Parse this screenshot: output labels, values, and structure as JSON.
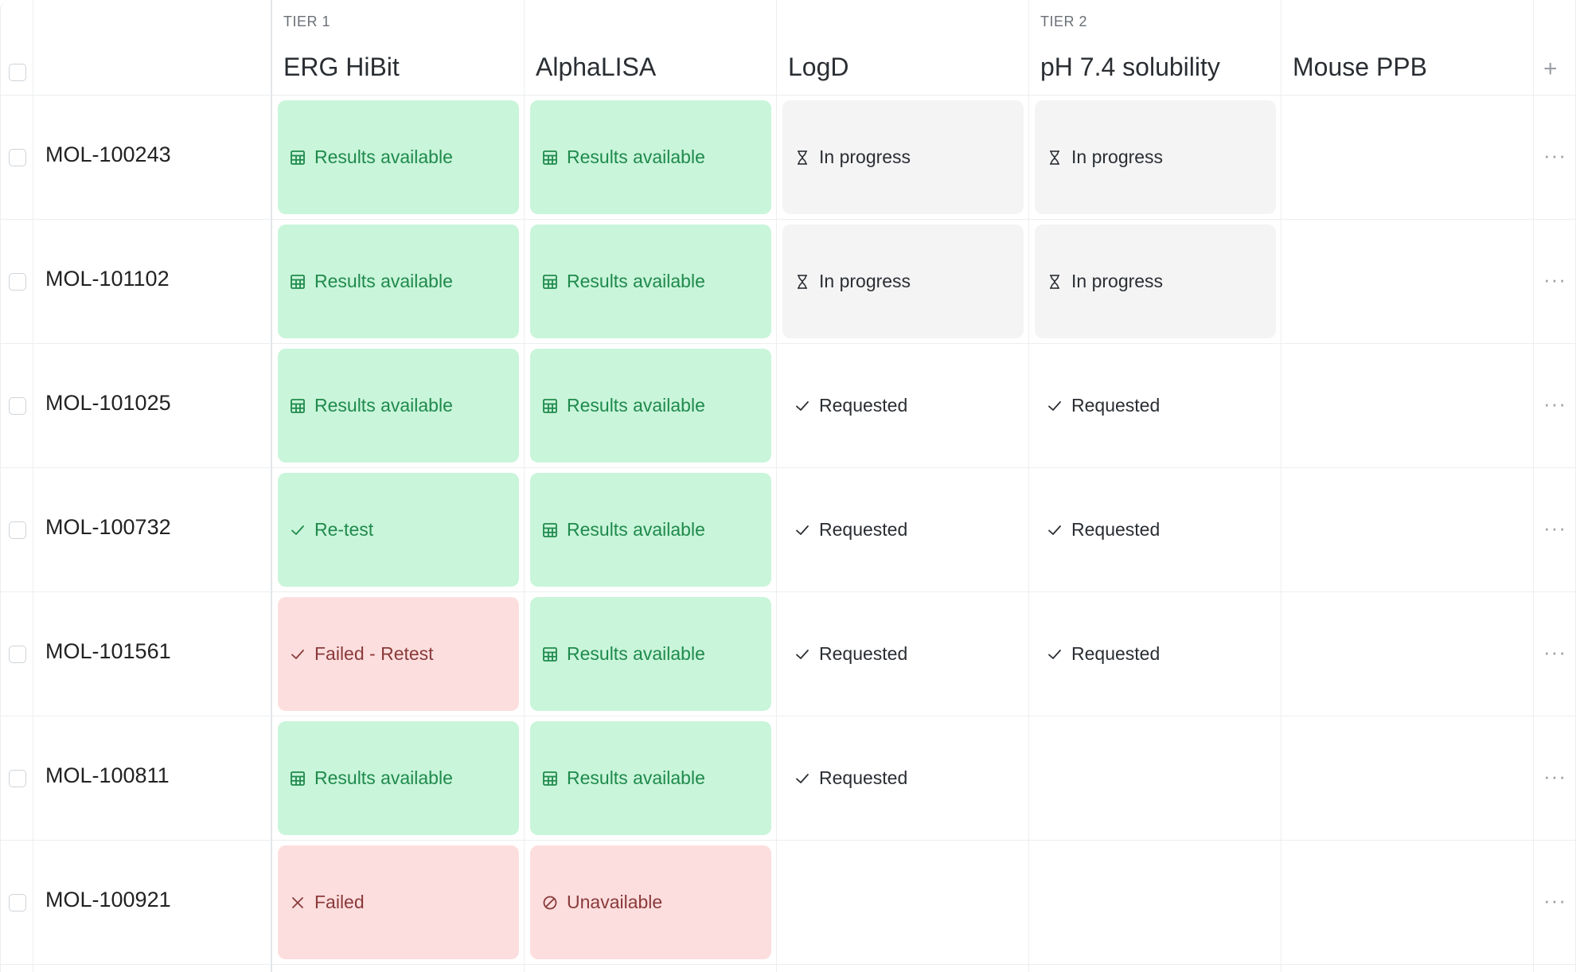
{
  "tiers": [
    {
      "label": "TIER 1"
    },
    {
      "label": "TIER 2"
    }
  ],
  "columns": [
    {
      "name": "ERG HiBit"
    },
    {
      "name": "AlphaLISA"
    },
    {
      "name": "LogD"
    },
    {
      "name": "pH 7.4 solubility"
    },
    {
      "name": "Mouse PPB"
    }
  ],
  "add_column_icon": "plus-icon",
  "row_menu_icon": "more-horizontal-icon",
  "status_colors": {
    "green_bg": "#c9f5da",
    "green_text": "#1f8a4c",
    "gray_bg": "#f4f4f4",
    "red_bg": "#fddede",
    "red_text": "#8a3a3a"
  },
  "rows": [
    {
      "id": "MOL-100243",
      "menu": "···",
      "cells": [
        {
          "label": "Results available",
          "style": "green",
          "icon": "table-icon"
        },
        {
          "label": "Results available",
          "style": "green",
          "icon": "table-icon"
        },
        {
          "label": "In progress",
          "style": "gray",
          "icon": "hourglass-icon"
        },
        {
          "label": "In progress",
          "style": "gray",
          "icon": "hourglass-icon"
        },
        {
          "label": "",
          "style": "empty",
          "icon": ""
        }
      ]
    },
    {
      "id": "MOL-101102",
      "menu": "···",
      "cells": [
        {
          "label": "Results available",
          "style": "green",
          "icon": "table-icon"
        },
        {
          "label": "Results available",
          "style": "green",
          "icon": "table-icon"
        },
        {
          "label": "In progress",
          "style": "gray",
          "icon": "hourglass-icon"
        },
        {
          "label": "In progress",
          "style": "gray",
          "icon": "hourglass-icon"
        },
        {
          "label": "",
          "style": "empty",
          "icon": ""
        }
      ]
    },
    {
      "id": "MOL-101025",
      "menu": "···",
      "cells": [
        {
          "label": "Results available",
          "style": "green",
          "icon": "table-icon"
        },
        {
          "label": "Results available",
          "style": "green",
          "icon": "table-icon"
        },
        {
          "label": "Requested",
          "style": "plain",
          "icon": "check-icon"
        },
        {
          "label": "Requested",
          "style": "plain",
          "icon": "check-icon"
        },
        {
          "label": "",
          "style": "empty",
          "icon": ""
        }
      ]
    },
    {
      "id": "MOL-100732",
      "menu": "···",
      "cells": [
        {
          "label": "Re-test",
          "style": "green",
          "icon": "check-icon"
        },
        {
          "label": "Results available",
          "style": "green",
          "icon": "table-icon"
        },
        {
          "label": "Requested",
          "style": "plain",
          "icon": "check-icon"
        },
        {
          "label": "Requested",
          "style": "plain",
          "icon": "check-icon"
        },
        {
          "label": "",
          "style": "empty",
          "icon": ""
        }
      ]
    },
    {
      "id": "MOL-101561",
      "menu": "···",
      "cells": [
        {
          "label": "Failed - Retest",
          "style": "red",
          "icon": "check-icon"
        },
        {
          "label": "Results available",
          "style": "green",
          "icon": "table-icon"
        },
        {
          "label": "Requested",
          "style": "plain",
          "icon": "check-icon"
        },
        {
          "label": "Requested",
          "style": "plain",
          "icon": "check-icon"
        },
        {
          "label": "",
          "style": "empty",
          "icon": ""
        }
      ]
    },
    {
      "id": "MOL-100811",
      "menu": "···",
      "cells": [
        {
          "label": "Results available",
          "style": "green",
          "icon": "table-icon"
        },
        {
          "label": "Results available",
          "style": "green",
          "icon": "table-icon"
        },
        {
          "label": "Requested",
          "style": "plain",
          "icon": "check-icon"
        },
        {
          "label": "",
          "style": "empty",
          "icon": ""
        },
        {
          "label": "",
          "style": "empty",
          "icon": ""
        }
      ]
    },
    {
      "id": "MOL-100921",
      "menu": "···",
      "cells": [
        {
          "label": "Failed",
          "style": "red",
          "icon": "x-icon"
        },
        {
          "label": "Unavailable",
          "style": "red",
          "icon": "ban-icon"
        },
        {
          "label": "",
          "style": "empty",
          "icon": ""
        },
        {
          "label": "",
          "style": "empty",
          "icon": ""
        },
        {
          "label": "",
          "style": "empty",
          "icon": ""
        }
      ]
    }
  ],
  "add_symbol": "+"
}
